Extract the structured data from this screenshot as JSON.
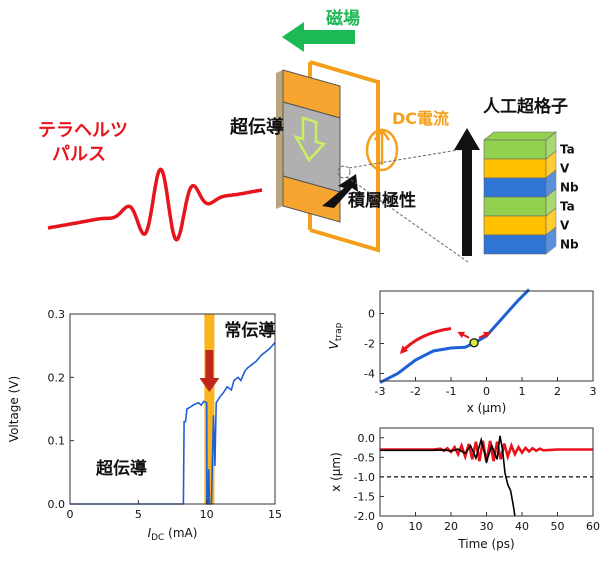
{
  "diagram": {
    "labels": {
      "terahertz_line1": "テラヘルツ",
      "terahertz_line2": "パルス",
      "magnetic_field": "磁場",
      "superconductor": "超伝導",
      "dc_current": "DC電流",
      "stacking_polarity": "積層極性",
      "superlattice": "人工超格子"
    },
    "layers": [
      {
        "name": "Ta",
        "color": "#92d050"
      },
      {
        "name": "V",
        "color": "#ffc000"
      },
      {
        "name": "Nb",
        "color": "#2f75d6"
      },
      {
        "name": "Ta",
        "color": "#92d050"
      },
      {
        "name": "V",
        "color": "#ffc000"
      },
      {
        "name": "Nb",
        "color": "#2f75d6"
      }
    ],
    "colors": {
      "terahertz": "#e8141b",
      "magnetic": "#1db954",
      "dc": "#f4a01c",
      "sample_gray": "#b0b0b0",
      "electrode": "#f7a531"
    }
  },
  "chart_data": [
    {
      "type": "line",
      "xlabel_main": "I",
      "xlabel_sub": "DC",
      "xlabel_unit": " (mA)",
      "ylabel": "Voltage (V)",
      "xlim": [
        0,
        15
      ],
      "ylim": [
        0,
        0.3
      ],
      "xticks": [
        "0",
        "5",
        "10",
        "15"
      ],
      "yticks": [
        "0.0",
        "0.1",
        "0.2",
        "0.3"
      ],
      "annotations": {
        "normal": "常伝導",
        "super": "超伝導"
      },
      "highlight_x": 10.2,
      "series": [
        {
          "color": "#1f5fd6",
          "x": [
            0,
            8.3,
            8.35,
            8.45,
            8.55,
            8.8,
            9.0,
            9.2,
            9.4,
            9.6,
            9.8,
            10.0,
            10.02,
            10.1,
            10.15,
            10.2,
            10.35,
            10.5,
            10.6,
            10.7,
            11.0,
            11.2,
            11.5,
            11.8,
            12.0,
            12.3,
            12.5,
            12.8,
            13.0,
            13.3,
            13.6,
            14.0,
            14.3,
            14.6,
            15.0
          ],
          "y": [
            0,
            0,
            0.13,
            0.13,
            0.15,
            0.153,
            0.156,
            0.158,
            0.16,
            0.156,
            0.162,
            0.16,
            0.0,
            0.0,
            0.055,
            0.0,
            0.0,
            0.14,
            0.06,
            0.16,
            0.17,
            0.175,
            0.185,
            0.18,
            0.195,
            0.2,
            0.195,
            0.21,
            0.215,
            0.22,
            0.225,
            0.235,
            0.24,
            0.245,
            0.255
          ]
        }
      ]
    },
    {
      "type": "line",
      "ylabel_main": "V",
      "ylabel_sub": "trap",
      "xlabel": "x (μm)",
      "xlim": [
        -3,
        3
      ],
      "ylim": [
        -4.5,
        1.5
      ],
      "xticks": [
        "-3",
        "-2",
        "-1",
        "0",
        "1",
        "2",
        "3"
      ],
      "yticks": [
        "0",
        "-2",
        "-4"
      ],
      "point": {
        "x": -0.35,
        "y": -1.95
      },
      "series": [
        {
          "color": "#1f5fd6",
          "x": [
            -3.0,
            -2.5,
            -2.0,
            -1.5,
            -1.0,
            -0.6,
            -0.3,
            0.0,
            0.3,
            0.6,
            0.9,
            1.2
          ],
          "y": [
            -4.6,
            -4.0,
            -3.1,
            -2.5,
            -2.3,
            -2.25,
            -1.9,
            -1.5,
            -0.7,
            0.1,
            0.9,
            1.6
          ]
        }
      ]
    },
    {
      "type": "line",
      "ylabel": "x (μm)",
      "xlabel": "Time (ps)",
      "xlim": [
        0,
        60
      ],
      "ylim": [
        -2.0,
        0.25
      ],
      "xticks": [
        "0",
        "10",
        "20",
        "30",
        "40",
        "50",
        "60"
      ],
      "yticks": [
        "0.0",
        "-0.5",
        "-1.0",
        "-1.5",
        "-2.0"
      ],
      "reference_line": -1.0,
      "series": [
        {
          "color": "#e8141b",
          "x": [
            0,
            15,
            17,
            18,
            19,
            20,
            21,
            22,
            23,
            24,
            25,
            26,
            27,
            28,
            29,
            30,
            31,
            32,
            33,
            34,
            35,
            36,
            37,
            38,
            39,
            40,
            41,
            42,
            43,
            44,
            45,
            46,
            48,
            50,
            55,
            60
          ],
          "y": [
            -0.3,
            -0.3,
            -0.28,
            -0.33,
            -0.27,
            -0.36,
            -0.24,
            -0.42,
            -0.2,
            -0.48,
            -0.16,
            -0.55,
            -0.1,
            -0.6,
            -0.08,
            -0.63,
            -0.08,
            -0.6,
            -0.1,
            -0.55,
            -0.15,
            -0.48,
            -0.2,
            -0.42,
            -0.24,
            -0.38,
            -0.26,
            -0.35,
            -0.27,
            -0.33,
            -0.28,
            -0.32,
            -0.31,
            -0.3,
            -0.3,
            -0.3
          ]
        },
        {
          "color": "#000000",
          "x": [
            0,
            15,
            18,
            20,
            22,
            24,
            25.5,
            27,
            28.5,
            30,
            31.5,
            33,
            33.8,
            34.5,
            35.2,
            36.0,
            36.8,
            37.5,
            38.0
          ],
          "y": [
            -0.32,
            -0.32,
            -0.31,
            -0.34,
            -0.29,
            -0.4,
            -0.2,
            -0.52,
            -0.05,
            -0.6,
            -0.2,
            -0.55,
            0.05,
            -0.3,
            -0.9,
            -1.2,
            -1.35,
            -1.7,
            -2.0
          ]
        }
      ]
    }
  ]
}
